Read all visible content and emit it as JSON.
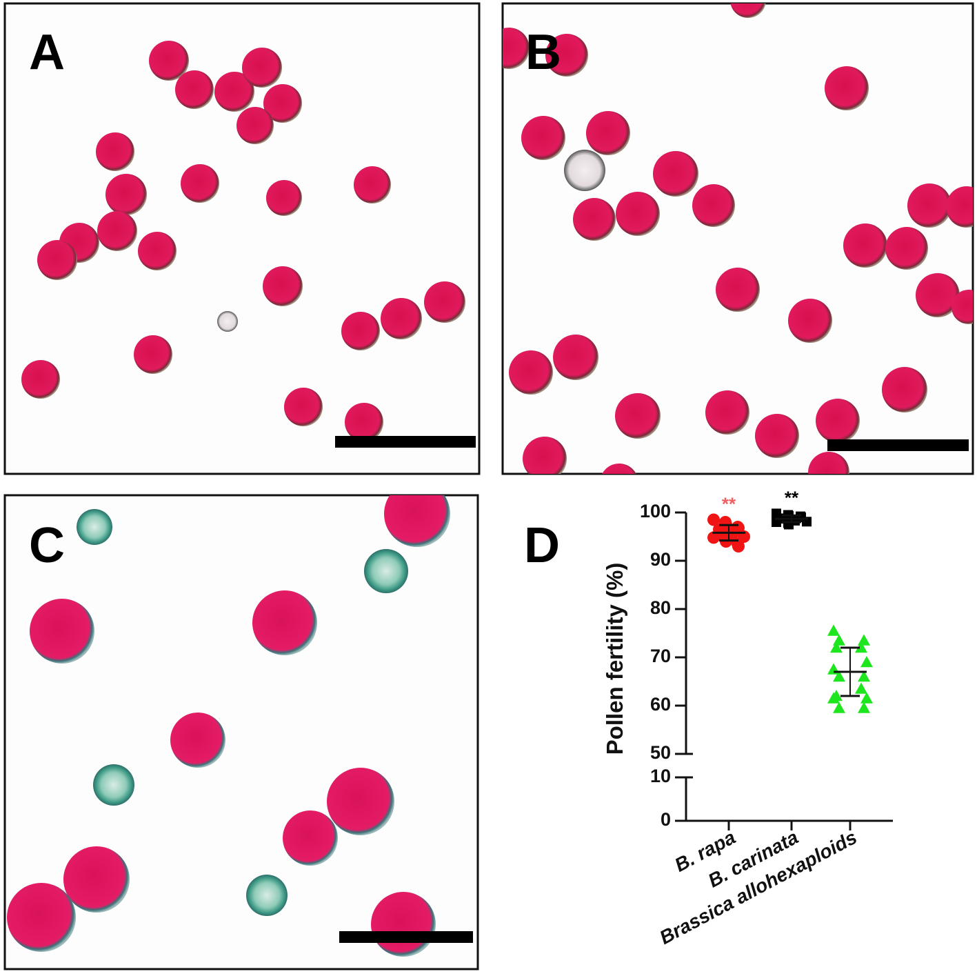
{
  "panels": [
    {
      "label": "A"
    },
    {
      "label": "B"
    },
    {
      "label": "C"
    }
  ],
  "chart_data": {
    "type": "dot",
    "label": "D",
    "y_label": "Pollen fertility (%)",
    "categories": [
      "B. rapa",
      "B. carinata",
      "Brassica allohexaploids"
    ],
    "colors": [
      "#f01414",
      "#000000",
      "#1ee61e"
    ],
    "markers": [
      "circle",
      "square",
      "triangle"
    ],
    "values": [
      [
        98.5,
        98,
        97.5,
        97,
        96.8,
        96.5,
        96,
        95.8,
        95.5,
        95,
        94.8,
        94.5,
        94,
        93.5,
        93
      ],
      [
        99.8,
        99.5,
        99.3,
        99.2,
        99,
        98.8,
        98.7,
        98.5,
        98.3,
        98.1,
        98,
        97.8,
        97.5
      ],
      [
        75.5,
        73.5,
        73.5,
        72,
        72,
        69,
        67.5,
        66,
        66,
        63.5,
        62,
        61.5,
        61.5,
        59.5,
        59.5
      ]
    ],
    "means": [
      95.8,
      98.7,
      67
    ],
    "sds": [
      1.6,
      0.7,
      5
    ],
    "annotations": [
      {
        "text": "**",
        "category": 0,
        "color": "#f06060"
      },
      {
        "text": "**",
        "category": 1,
        "color": "#000000"
      }
    ],
    "ylim": [
      0,
      100
    ],
    "ybreak": [
      10,
      50
    ],
    "yticks": [
      0,
      10,
      50,
      60,
      70,
      80,
      90,
      100
    ]
  }
}
